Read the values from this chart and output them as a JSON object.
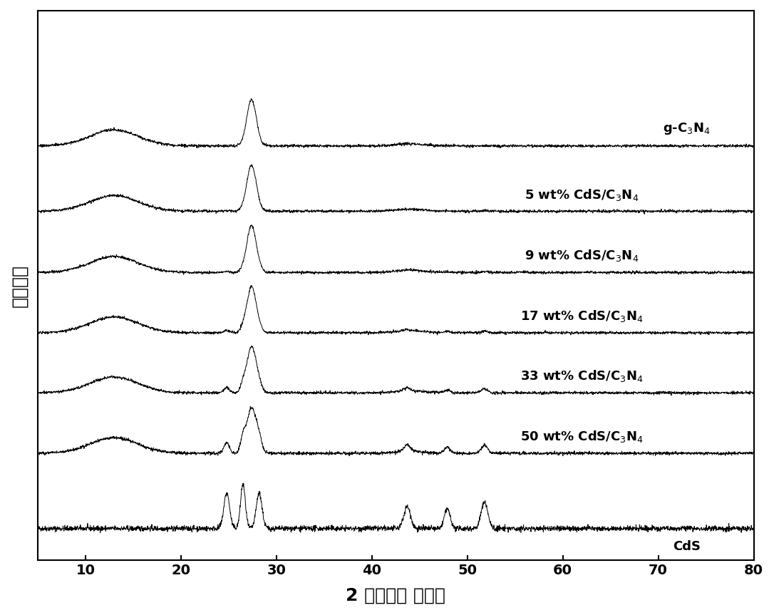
{
  "x_min": 5,
  "x_max": 80,
  "xlabel": "2 倍入射角 （度）",
  "ylabel": "相对强度",
  "xticks": [
    10,
    20,
    30,
    40,
    50,
    60,
    70,
    80
  ],
  "background_color": "#ffffff",
  "line_color": "#000000",
  "labels": [
    "g-C₃N₄",
    "5 wt% CdS/C₃N₄",
    "9 wt% CdS/C₃N₄",
    "17 wt% CdS/C₃N₄",
    "33 wt% CdS/C₃N₄",
    "50 wt% CdS/C₃N₄",
    "CdS"
  ],
  "offsets": [
    7.0,
    5.8,
    4.7,
    3.6,
    2.5,
    1.4,
    0.0
  ],
  "seed": 42
}
